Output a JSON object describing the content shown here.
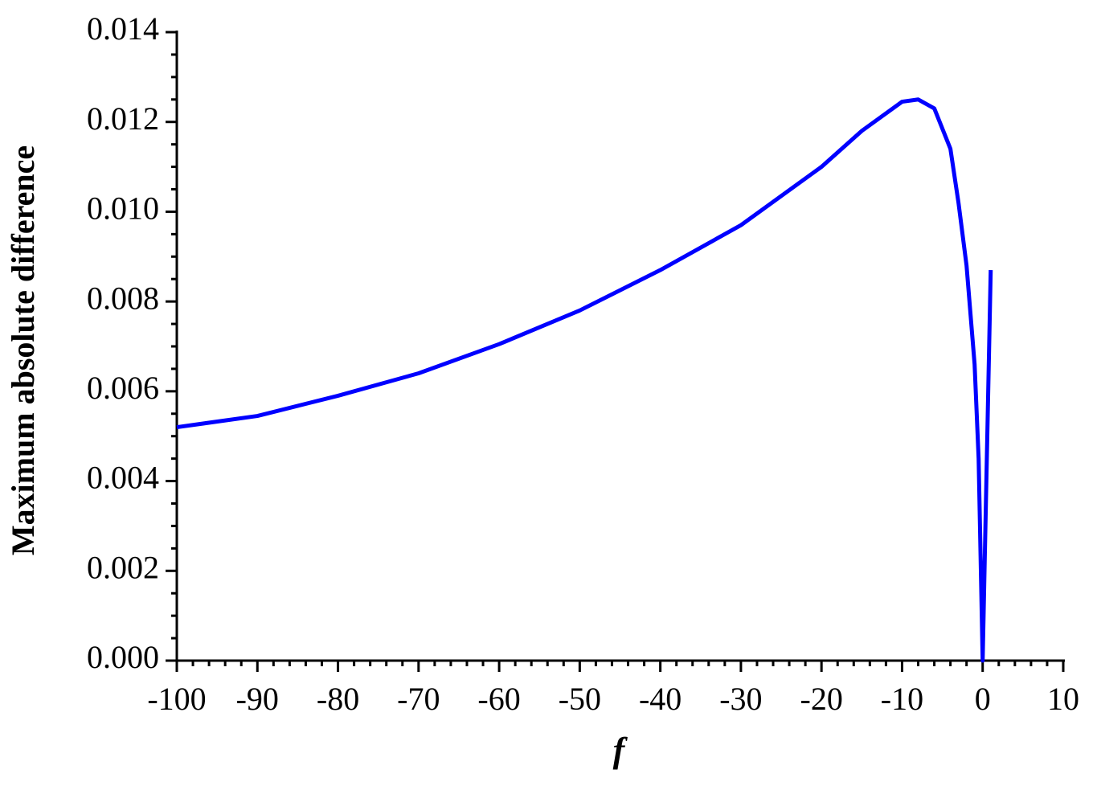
{
  "chart_data": {
    "type": "line",
    "x_label": "f",
    "y_label": "Maximum absolute difference",
    "series": [
      {
        "name": "Maximum absolute difference",
        "color": "#0000ff",
        "x": [
          -100,
          -90,
          -80,
          -70,
          -60,
          -50,
          -40,
          -30,
          -20,
          -15,
          -10,
          -8,
          -6,
          -4,
          -3,
          -2,
          -1,
          -0.5,
          0,
          1
        ],
        "values": [
          0.0052,
          0.00545,
          0.0059,
          0.0064,
          0.00705,
          0.0078,
          0.0087,
          0.0097,
          0.011,
          0.0118,
          0.01245,
          0.0125,
          0.0123,
          0.0114,
          0.0102,
          0.0088,
          0.0066,
          0.0045,
          0.0,
          0.0087
        ]
      }
    ],
    "xlim": [
      -100,
      10
    ],
    "xticks": [
      -100,
      -90,
      -80,
      -70,
      -60,
      -50,
      -40,
      -30,
      -20,
      -10,
      0,
      10
    ],
    "ylim": [
      0,
      0.014
    ],
    "yticks": [
      {
        "value": 0,
        "label": "0.000"
      },
      {
        "value": 0.002,
        "label": "0.002"
      },
      {
        "value": 0.004,
        "label": "0.004"
      },
      {
        "value": 0.006,
        "label": "0.006"
      },
      {
        "value": 0.008,
        "label": "0.008"
      },
      {
        "value": 0.01,
        "label": "0.010"
      },
      {
        "value": 0.012,
        "label": "0.012"
      },
      {
        "value": 0.014,
        "label": "0.014"
      }
    ]
  }
}
